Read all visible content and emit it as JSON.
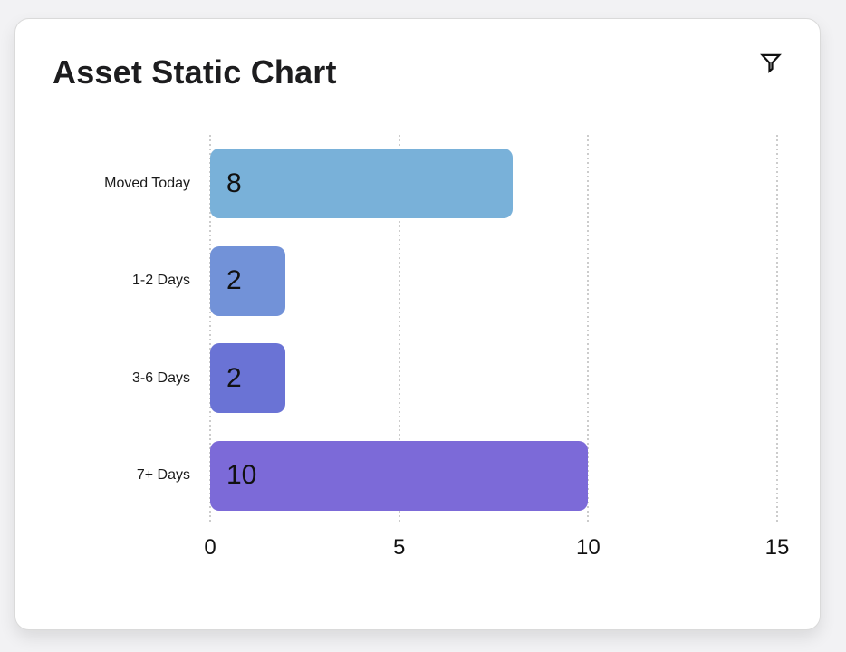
{
  "header": {
    "title": "Asset Static Chart",
    "filter_icon": "filter-funnel-icon"
  },
  "chart_data": {
    "type": "bar",
    "orientation": "horizontal",
    "title": "Asset Static Chart",
    "categories": [
      "Moved Today",
      "1-2 Days",
      "3-6 Days",
      "7+ Days"
    ],
    "values": [
      8,
      2,
      2,
      10
    ],
    "bar_colors": [
      "#79b1d9",
      "#7292d8",
      "#6a73d5",
      "#7c6ad8"
    ],
    "value_label_color": "#111111",
    "xlabel": "",
    "ylabel": "",
    "xlim": [
      0,
      15
    ],
    "xticks": [
      0,
      5,
      10,
      15
    ],
    "grid": "dotted-vertical-gridlines",
    "gridline_color": "#cccccc",
    "legend": "none"
  },
  "colors": {
    "page_background": "#f2f2f4",
    "card_background": "#ffffff",
    "title_text": "#1d1d1f"
  }
}
